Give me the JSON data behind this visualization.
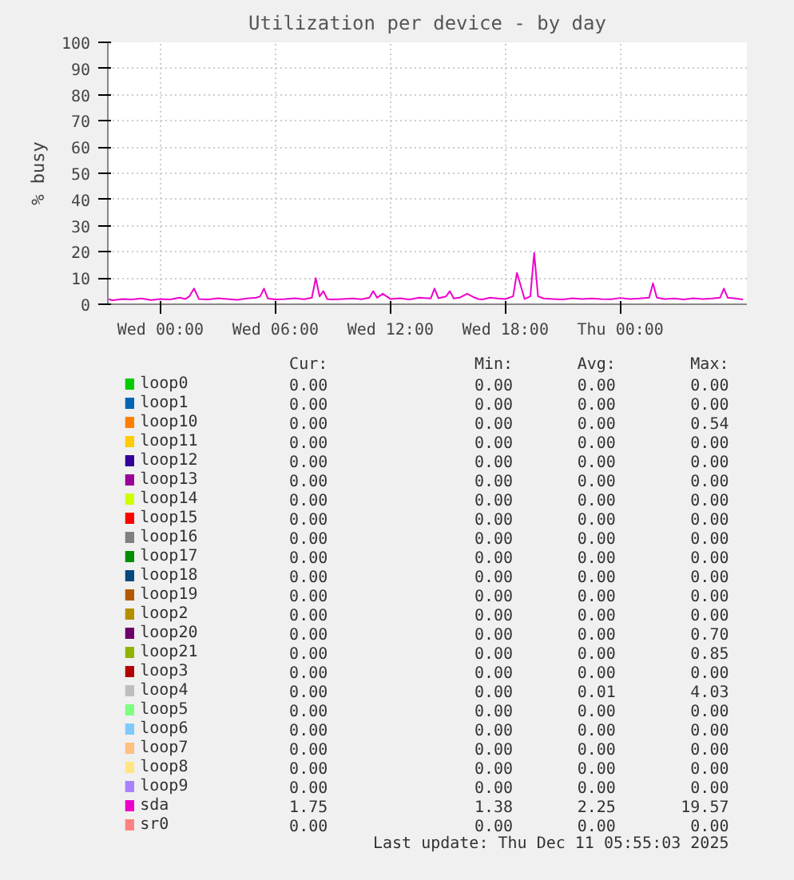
{
  "chart_data": [
    {
      "type": "line",
      "title": "Utilization per device - by day",
      "ylabel": "% busy",
      "x": [
        "2025-12-09T21:15",
        "2025-12-09T21:30",
        "2025-12-09T22:00",
        "2025-12-09T22:30",
        "2025-12-09T23:00",
        "2025-12-09T23:30",
        "2025-12-10T00:00",
        "2025-12-10T00:30",
        "2025-12-10T01:00",
        "2025-12-10T01:18",
        "2025-12-10T01:30",
        "2025-12-10T01:45",
        "2025-12-10T02:00",
        "2025-12-10T02:30",
        "2025-12-10T03:00",
        "2025-12-10T03:30",
        "2025-12-10T04:00",
        "2025-12-10T04:30",
        "2025-12-10T05:00",
        "2025-12-10T05:12",
        "2025-12-10T05:24",
        "2025-12-10T05:36",
        "2025-12-10T06:00",
        "2025-12-10T06:30",
        "2025-12-10T07:00",
        "2025-12-10T07:30",
        "2025-12-10T07:54",
        "2025-12-10T08:06",
        "2025-12-10T08:18",
        "2025-12-10T08:30",
        "2025-12-10T08:42",
        "2025-12-10T09:00",
        "2025-12-10T09:30",
        "2025-12-10T10:00",
        "2025-12-10T10:30",
        "2025-12-10T10:54",
        "2025-12-10T11:06",
        "2025-12-10T11:18",
        "2025-12-10T11:36",
        "2025-12-10T12:00",
        "2025-12-10T12:30",
        "2025-12-10T13:00",
        "2025-12-10T13:30",
        "2025-12-10T14:06",
        "2025-12-10T14:18",
        "2025-12-10T14:30",
        "2025-12-10T14:54",
        "2025-12-10T15:06",
        "2025-12-10T15:18",
        "2025-12-10T15:36",
        "2025-12-10T16:00",
        "2025-12-10T16:24",
        "2025-12-10T16:36",
        "2025-12-10T16:48",
        "2025-12-10T17:12",
        "2025-12-10T17:36",
        "2025-12-10T18:00",
        "2025-12-10T18:24",
        "2025-12-10T18:36",
        "2025-12-10T18:48",
        "2025-12-10T19:00",
        "2025-12-10T19:18",
        "2025-12-10T19:30",
        "2025-12-10T19:42",
        "2025-12-10T20:00",
        "2025-12-10T20:30",
        "2025-12-10T21:00",
        "2025-12-10T21:30",
        "2025-12-10T22:00",
        "2025-12-10T22:30",
        "2025-12-10T23:00",
        "2025-12-10T23:30",
        "2025-12-11T00:00",
        "2025-12-11T00:30",
        "2025-12-11T01:00",
        "2025-12-11T01:30",
        "2025-12-11T01:42",
        "2025-12-11T01:54",
        "2025-12-11T02:18",
        "2025-12-11T02:48",
        "2025-12-11T03:18",
        "2025-12-11T03:48",
        "2025-12-11T04:18",
        "2025-12-11T04:48",
        "2025-12-11T05:12",
        "2025-12-11T05:24",
        "2025-12-11T05:36",
        "2025-12-11T06:00",
        "2025-12-11T06:24"
      ],
      "series": [
        {
          "color": "#ee00cc",
          "values": [
            2,
            1.5,
            2,
            1.8,
            2.2,
            1.6,
            2,
            1.8,
            2.5,
            2,
            3,
            6,
            2,
            1.8,
            2.3,
            2,
            1.7,
            2.2,
            2.5,
            3,
            6,
            2.2,
            1.8,
            2,
            2.3,
            1.9,
            2.5,
            10,
            3,
            5,
            2,
            1.8,
            2,
            2.2,
            1.9,
            2.5,
            5,
            2.5,
            4,
            2,
            2.3,
            1.8,
            2.5,
            2.2,
            6,
            2.3,
            3,
            5,
            2.2,
            2.5,
            4,
            2.5,
            2,
            1.8,
            2.5,
            2.2,
            2,
            3,
            12,
            7,
            2,
            3,
            19.6,
            3,
            2.2,
            2,
            1.8,
            2.3,
            2,
            2.2,
            2,
            1.9,
            2.4,
            2,
            2.2,
            2.5,
            8,
            2.5,
            2,
            2.2,
            1.8,
            2.3,
            2,
            2.2,
            2.5,
            6,
            2.5,
            2.2,
            1.8
          ]
        }
      ],
      "xlim": [
        "2025-12-09T21:15",
        "2025-12-11T06:36"
      ],
      "ylim": [
        0,
        100
      ],
      "xticks": [
        {
          "value": "2025-12-10T00:00",
          "label": "Wed 00:00"
        },
        {
          "value": "2025-12-10T06:00",
          "label": "Wed 06:00"
        },
        {
          "value": "2025-12-10T12:00",
          "label": "Wed 12:00"
        },
        {
          "value": "2025-12-10T18:00",
          "label": "Wed 18:00"
        },
        {
          "value": "2025-12-11T00:00",
          "label": "Thu 00:00"
        }
      ],
      "yticks": [
        0,
        10,
        20,
        30,
        40,
        50,
        60,
        70,
        80,
        90,
        100
      ],
      "grid": true,
      "line_style": "solid",
      "marker": "none"
    },
    {
      "type": "other",
      "categories": [
        "loop0",
        "loop1",
        "loop10",
        "loop11",
        "loop12",
        "loop13",
        "loop14",
        "loop15",
        "loop16",
        "loop17",
        "loop18",
        "loop19",
        "loop2",
        "loop20",
        "loop21",
        "loop3",
        "loop4",
        "loop5",
        "loop6",
        "loop7",
        "loop8",
        "loop9",
        "sda",
        "sr0"
      ],
      "colors": [
        "#00cc00",
        "#0066b3",
        "#ff8000",
        "#ffcc00",
        "#330099",
        "#990099",
        "#ccff00",
        "#ff0000",
        "#808080",
        "#008f00",
        "#00487d",
        "#b35a00",
        "#b38f00",
        "#6b006b",
        "#8fb300",
        "#b30000",
        "#bebebe",
        "#80ff80",
        "#80c9ff",
        "#ffc080",
        "#ffe680",
        "#aa80ff",
        "#ee00cc",
        "#ff8080"
      ],
      "series": [
        {
          "name": "Cur:",
          "values": [
            0,
            0,
            0,
            0,
            0,
            0,
            0,
            0,
            0,
            0,
            0,
            0,
            0,
            0,
            0,
            0,
            0,
            0,
            0,
            0,
            0,
            0,
            1.75,
            0
          ],
          "value_labels": [
            "0.00",
            "0.00",
            "0.00",
            "0.00",
            "0.00",
            "0.00",
            "0.00",
            "0.00",
            "0.00",
            "0.00",
            "0.00",
            "0.00",
            "0.00",
            "0.00",
            "0.00",
            "0.00",
            "0.00",
            "0.00",
            "0.00",
            "0.00",
            "0.00",
            "0.00",
            "1.75",
            "0.00"
          ]
        },
        {
          "name": "Min:",
          "values": [
            0,
            0,
            0,
            0,
            0,
            0,
            0,
            0,
            0,
            0,
            0,
            0,
            0,
            0,
            0,
            0,
            0,
            0,
            0,
            0,
            0,
            0,
            1.38,
            0
          ],
          "value_labels": [
            "0.00",
            "0.00",
            "0.00",
            "0.00",
            "0.00",
            "0.00",
            "0.00",
            "0.00",
            "0.00",
            "0.00",
            "0.00",
            "0.00",
            "0.00",
            "0.00",
            "0.00",
            "0.00",
            "0.00",
            "0.00",
            "0.00",
            "0.00",
            "0.00",
            "0.00",
            "1.38",
            "0.00"
          ]
        },
        {
          "name": "Avg:",
          "values": [
            0,
            0,
            0,
            0,
            0,
            0,
            0,
            0,
            0,
            0,
            0,
            0,
            0,
            0,
            0,
            0,
            0.01,
            0,
            0,
            0,
            0,
            0,
            2.25,
            0
          ],
          "value_labels": [
            "0.00",
            "0.00",
            "0.00",
            "0.00",
            "0.00",
            "0.00",
            "0.00",
            "0.00",
            "0.00",
            "0.00",
            "0.00",
            "0.00",
            "0.00",
            "0.00",
            "0.00",
            "0.00",
            "0.01",
            "0.00",
            "0.00",
            "0.00",
            "0.00",
            "0.00",
            "2.25",
            "0.00"
          ]
        },
        {
          "name": "Max:",
          "values": [
            0,
            0,
            0.54,
            0,
            0,
            0,
            0,
            0,
            0,
            0,
            0,
            0,
            0,
            0.7,
            0.85,
            0,
            4.03,
            0,
            0,
            0,
            0,
            0,
            19.57,
            0
          ],
          "value_labels": [
            "0.00",
            "0.00",
            "0.54",
            "0.00",
            "0.00",
            "0.00",
            "0.00",
            "0.00",
            "0.00",
            "0.00",
            "0.00",
            "0.00",
            "0.00",
            "0.70",
            "0.85",
            "0.00",
            "4.03",
            "0.00",
            "0.00",
            "0.00",
            "0.00",
            "0.00",
            "19.57",
            "0.00"
          ]
        }
      ],
      "annotations": [
        "Last update: Thu Dec 11 05:55:03 2025"
      ]
    }
  ]
}
